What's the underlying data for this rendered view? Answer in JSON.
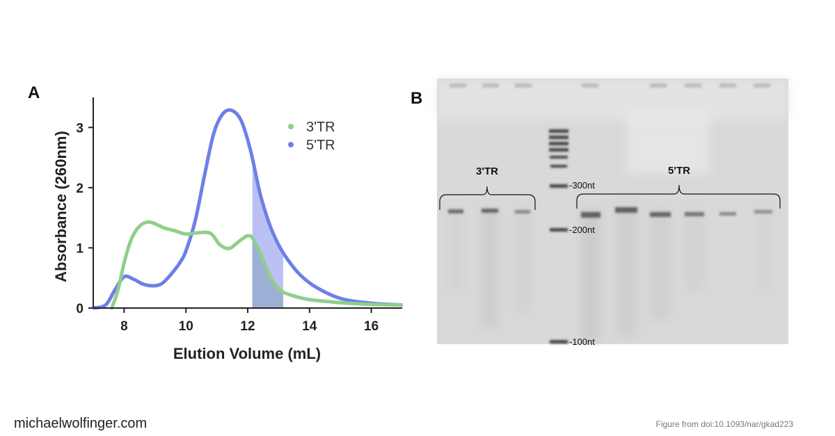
{
  "panels": {
    "a": "A",
    "b": "B"
  },
  "chart_data": {
    "type": "line",
    "xlabel": "Elution Volume (mL)",
    "ylabel": "Absorbance (260nm)",
    "xlim": [
      7,
      17
    ],
    "ylim": [
      0,
      3.5
    ],
    "xticks": [
      8,
      10,
      12,
      14,
      16
    ],
    "yticks": [
      0,
      1,
      2,
      3
    ],
    "legend_position": "top-right",
    "series": [
      {
        "name": "3'TR",
        "color": "#8fcf8a",
        "x": [
          7.6,
          7.8,
          8.0,
          8.2,
          8.4,
          8.6,
          8.8,
          9.0,
          9.3,
          9.6,
          10.0,
          10.4,
          10.8,
          11.1,
          11.4,
          11.7,
          12.0,
          12.2,
          12.5,
          12.8,
          13.1,
          13.5,
          14.0,
          15.0,
          16.0,
          17.0
        ],
        "y": [
          0.0,
          0.3,
          0.75,
          1.1,
          1.3,
          1.4,
          1.43,
          1.4,
          1.33,
          1.29,
          1.23,
          1.25,
          1.24,
          1.05,
          0.99,
          1.1,
          1.2,
          1.13,
          0.8,
          0.45,
          0.28,
          0.2,
          0.14,
          0.09,
          0.06,
          0.05
        ]
      },
      {
        "name": "5'TR",
        "color": "#6f7fe8",
        "x": [
          7.0,
          7.4,
          7.7,
          8.0,
          8.3,
          8.6,
          8.9,
          9.2,
          9.5,
          9.8,
          10.0,
          10.3,
          10.6,
          10.9,
          11.2,
          11.5,
          11.8,
          12.1,
          12.4,
          12.7,
          13.0,
          13.3,
          13.7,
          14.2,
          15.0,
          16.0,
          17.0
        ],
        "y": [
          0.0,
          0.05,
          0.3,
          0.52,
          0.48,
          0.4,
          0.37,
          0.4,
          0.55,
          0.75,
          0.95,
          1.45,
          2.2,
          2.9,
          3.23,
          3.28,
          3.1,
          2.6,
          1.9,
          1.4,
          1.05,
          0.8,
          0.55,
          0.35,
          0.16,
          0.08,
          0.05
        ]
      }
    ],
    "highlight_range": [
      12.15,
      13.15
    ],
    "highlight_color": "#aab3f0"
  },
  "gel": {
    "label_3tr": "3'TR",
    "label_5tr": "5'TR",
    "markers": [
      "-300nt",
      "-200nt",
      "-100nt"
    ]
  },
  "footer": {
    "site": "michaelwolfinger.com",
    "credit": "Figure from doi:10.1093/nar/gkad223"
  }
}
